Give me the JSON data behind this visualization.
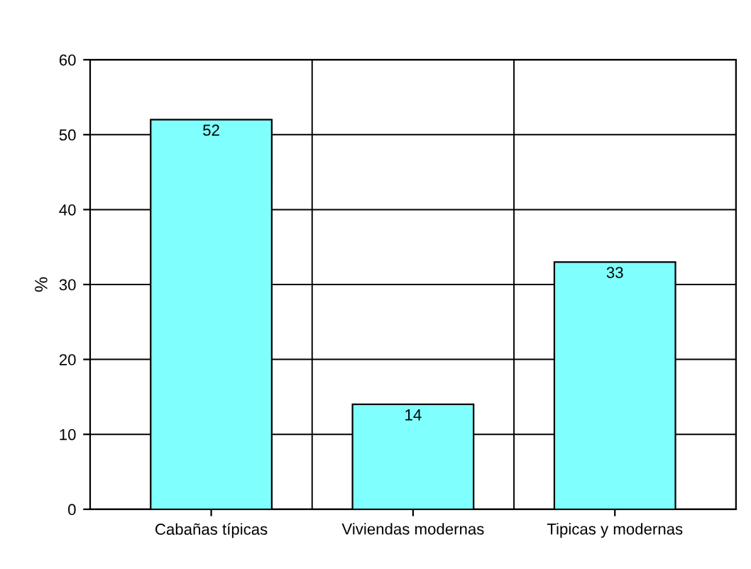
{
  "chart_data": {
    "type": "bar",
    "ylabel": "%",
    "categories": [
      "Cabañas típicas",
      "Viviendas modernas",
      "Tipicas y modernas"
    ],
    "values": [
      52,
      14,
      33
    ],
    "color": "#80ffff",
    "ylim": [
      0,
      60
    ],
    "yticks": [
      0,
      10,
      20,
      30,
      40,
      50,
      60
    ],
    "grid": true,
    "data_labels": true
  }
}
